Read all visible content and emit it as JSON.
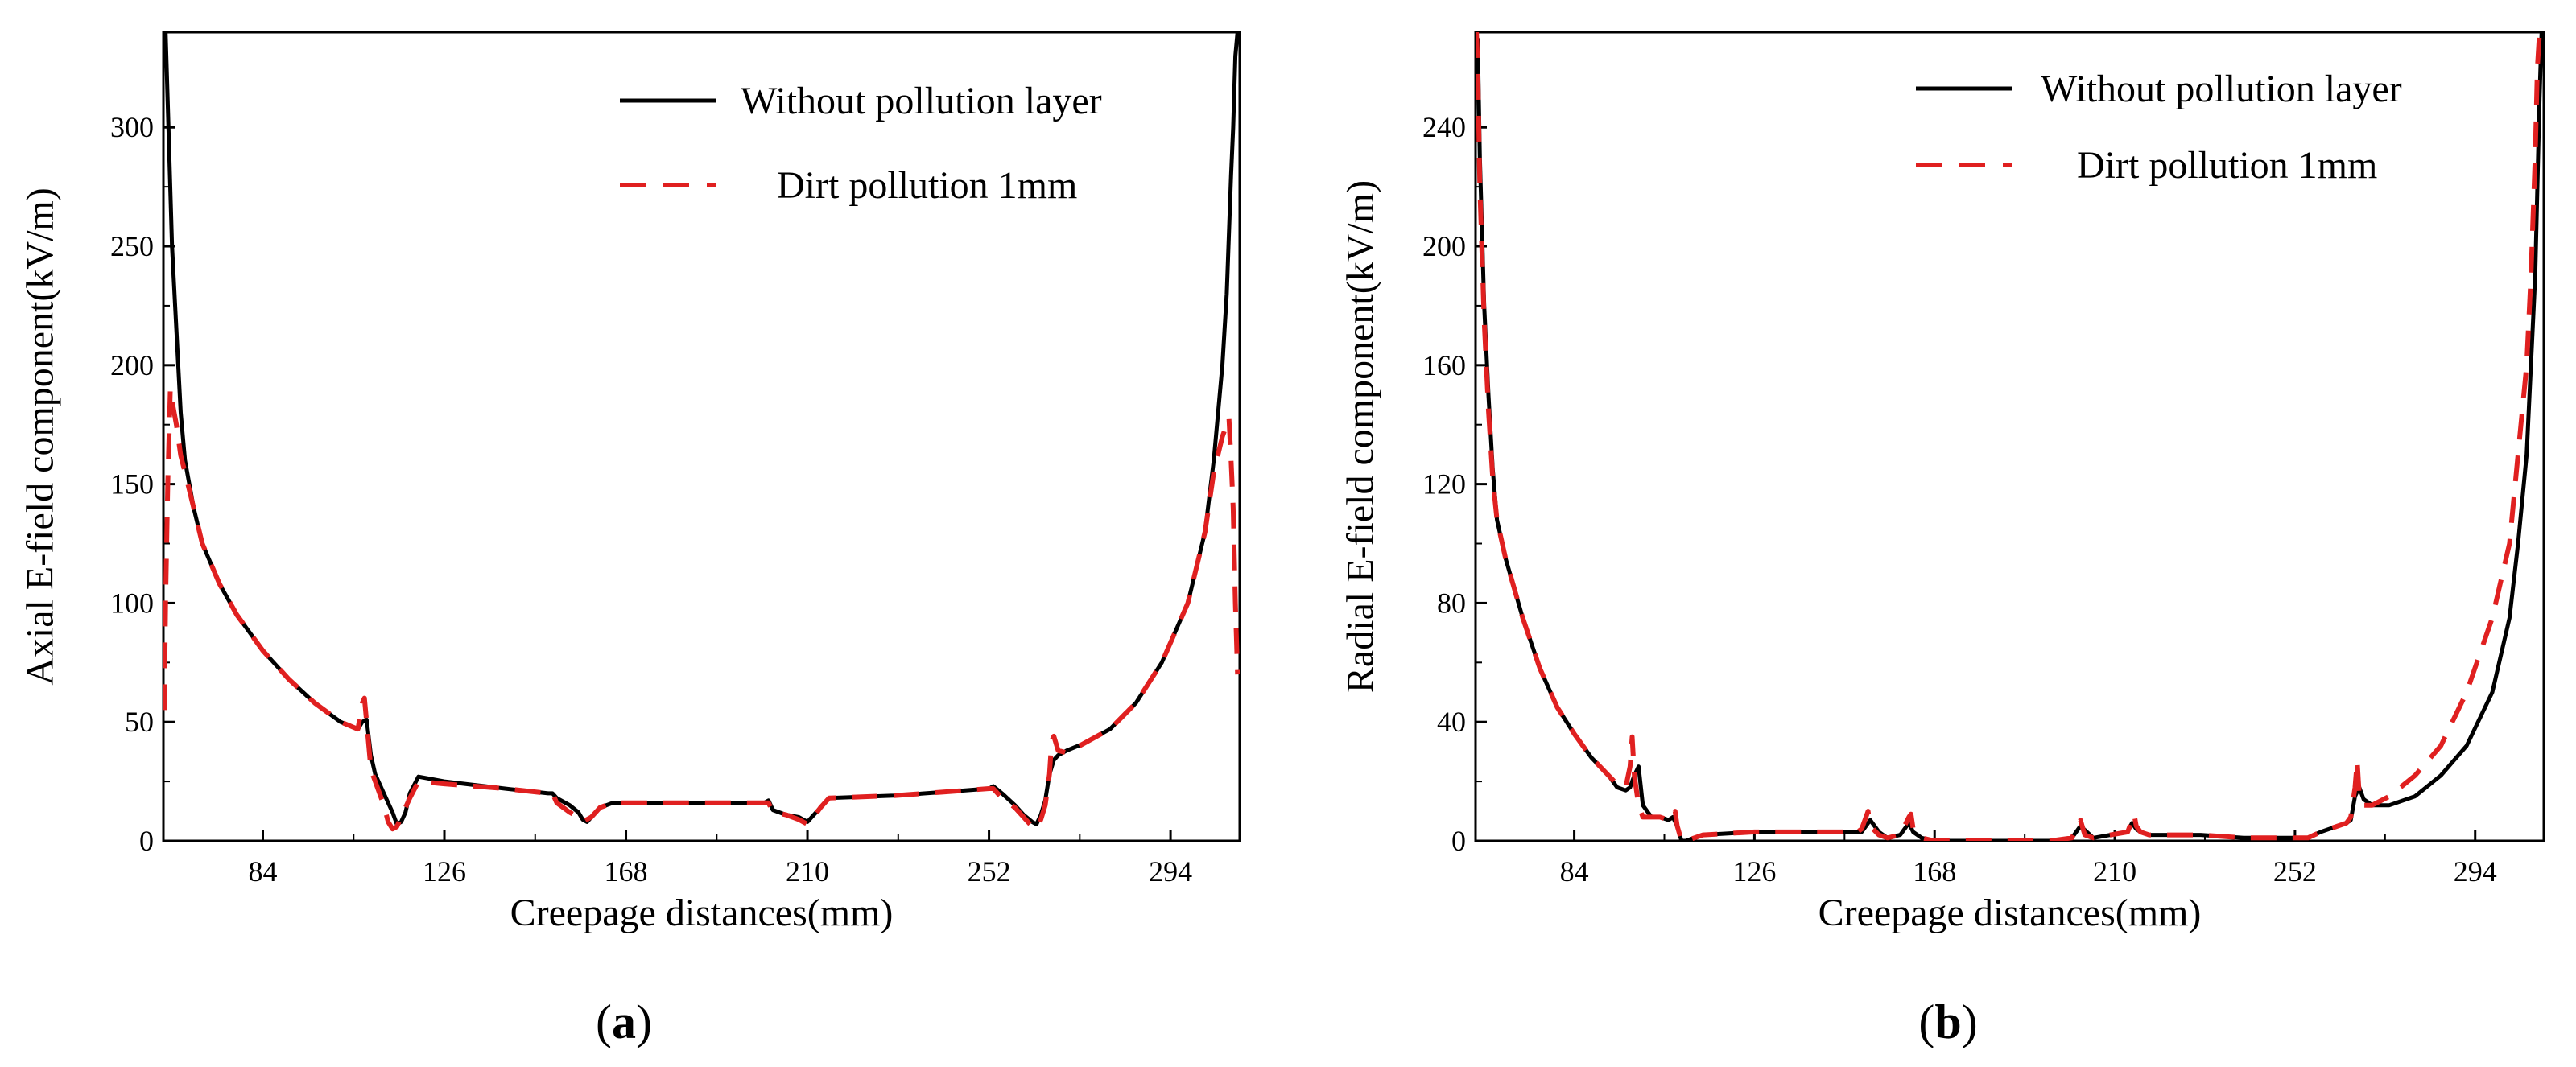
{
  "chart_data": [
    {
      "type": "line",
      "panel_label": {
        "open": "(",
        "letter": "a",
        "close": ")"
      },
      "xlabel": "Creepage distances(mm)",
      "ylabel": "Axial E-field component(kV/m)",
      "xlim": [
        61,
        310
      ],
      "ylim": [
        0,
        340
      ],
      "xticks": [
        84,
        126,
        168,
        210,
        252,
        294
      ],
      "yticks": [
        0,
        50,
        100,
        150,
        200,
        250,
        300
      ],
      "legend_position": "top-right",
      "series": [
        {
          "name": "Without pollution layer",
          "color": "#000000",
          "dash": "solid",
          "x": [
            61.5,
            62,
            63,
            64,
            65,
            66,
            68,
            70,
            74,
            78,
            84,
            90,
            96,
            102,
            106,
            107,
            108,
            109,
            110,
            112,
            114,
            115,
            116,
            117,
            118,
            120,
            126,
            140,
            150,
            151,
            152,
            155,
            157,
            158,
            159,
            160,
            162,
            165,
            168,
            190,
            200,
            201,
            202,
            205,
            208,
            209,
            210,
            211,
            213,
            215,
            230,
            245,
            252,
            253,
            255,
            258,
            260,
            262,
            263,
            264,
            265,
            266,
            267,
            268,
            269,
            270,
            274,
            280,
            286,
            292,
            298,
            302,
            304,
            306,
            307,
            308,
            308.5,
            309,
            309.5
          ],
          "y": [
            340,
            310,
            250,
            215,
            180,
            160,
            140,
            125,
            108,
            95,
            80,
            68,
            58,
            50,
            47,
            50,
            51,
            36,
            28,
            20,
            12,
            7,
            8,
            12,
            20,
            27,
            25,
            22,
            20,
            20,
            18,
            15,
            12,
            9,
            8,
            10,
            14,
            16,
            16,
            16,
            16,
            17,
            13,
            11,
            10,
            9,
            8,
            10,
            14,
            18,
            19,
            21,
            22,
            23,
            20,
            15,
            11,
            8,
            7,
            11,
            17,
            28,
            34,
            36,
            37,
            38,
            41,
            47,
            58,
            75,
            100,
            130,
            160,
            200,
            230,
            280,
            300,
            330,
            340
          ]
        },
        {
          "name": "Dirt pollution 1mm",
          "color": "#e02020",
          "dash": "dashed",
          "x": [
            61.2,
            61.5,
            62,
            62.6,
            63,
            64,
            65,
            66,
            68,
            70,
            74,
            78,
            84,
            90,
            96,
            102,
            106,
            107,
            107.5,
            108,
            108.5,
            109,
            110,
            112,
            113,
            114,
            115,
            116,
            118,
            120,
            126,
            140,
            150,
            151,
            152,
            155,
            157,
            158,
            160,
            162,
            165,
            168,
            190,
            200,
            201,
            202,
            205,
            208,
            209,
            210,
            211,
            213,
            215,
            230,
            245,
            252,
            253,
            255,
            258,
            260,
            262,
            263,
            264,
            265,
            266,
            266.5,
            267,
            268,
            270,
            274,
            280,
            286,
            292,
            298,
            302,
            304,
            306,
            307,
            307.5,
            308,
            308.5,
            309,
            309.5
          ],
          "y": [
            55,
            100,
            150,
            190,
            185,
            175,
            162,
            155,
            140,
            125,
            108,
            95,
            80,
            68,
            58,
            50,
            47,
            58,
            60,
            50,
            40,
            30,
            25,
            15,
            8,
            5,
            6,
            10,
            18,
            25,
            24,
            22,
            20,
            20,
            16,
            12,
            10,
            8,
            10,
            14,
            16,
            16,
            16,
            16,
            16,
            12,
            11,
            9,
            8,
            7,
            9,
            14,
            18,
            19,
            21,
            22,
            22,
            18,
            14,
            10,
            6,
            5,
            9,
            15,
            28,
            42,
            44,
            38,
            37,
            41,
            47,
            58,
            75,
            100,
            130,
            155,
            170,
            175,
            178,
            160,
            140,
            100,
            70
          ]
        }
      ]
    },
    {
      "type": "line",
      "panel_label": {
        "open": "(",
        "letter": "b",
        "close": ")"
      },
      "xlabel": "Creepage distances(mm)",
      "ylabel": "Radial E-field component(kV/m)",
      "xlim": [
        61,
        310
      ],
      "ylim": [
        0,
        272
      ],
      "xticks": [
        84,
        126,
        168,
        210,
        252,
        294
      ],
      "yticks": [
        0,
        40,
        80,
        120,
        160,
        200,
        240
      ],
      "legend_position": "top-right",
      "series": [
        {
          "name": "Without pollution layer",
          "color": "#000000",
          "dash": "solid",
          "x": [
            61.5,
            62,
            63,
            64,
            65,
            66,
            68,
            72,
            76,
            80,
            84,
            88,
            92,
            94,
            96,
            97,
            98,
            99,
            100,
            102,
            104,
            106,
            107,
            108,
            109,
            110,
            112,
            114,
            126,
            140,
            150,
            151,
            152,
            153,
            155,
            157,
            160,
            161,
            162,
            163,
            165,
            168,
            180,
            195,
            200,
            201,
            202,
            205,
            213,
            214,
            215,
            216,
            218,
            230,
            240,
            250,
            255,
            258,
            262,
            264,
            265,
            266,
            267,
            268,
            270,
            274,
            280,
            286,
            292,
            298,
            302,
            304,
            306,
            307,
            308,
            308.5,
            309,
            309.5
          ],
          "y": [
            270,
            230,
            180,
            150,
            125,
            108,
            95,
            75,
            58,
            45,
            36,
            28,
            22,
            18,
            17,
            18,
            22,
            25,
            12,
            8,
            8,
            7,
            8,
            5,
            0,
            0,
            1,
            2,
            3,
            3,
            3,
            3,
            5,
            7,
            3,
            1,
            2,
            4,
            6,
            3,
            1,
            0,
            0,
            0,
            1,
            3,
            5,
            1,
            3,
            6,
            4,
            3,
            2,
            2,
            1,
            1,
            1,
            3,
            5,
            6,
            7,
            15,
            18,
            14,
            12,
            12,
            15,
            22,
            32,
            50,
            75,
            100,
            130,
            160,
            190,
            220,
            250,
            272
          ]
        },
        {
          "name": "Dirt pollution 1mm",
          "color": "#e02020",
          "dash": "dashed",
          "x": [
            61.2,
            61.5,
            62,
            63,
            64,
            65,
            66,
            68,
            72,
            76,
            80,
            84,
            88,
            92,
            94,
            96,
            97,
            97.5,
            98,
            99,
            100,
            102,
            104,
            106,
            107,
            107.5,
            108,
            109,
            110,
            112,
            114,
            126,
            140,
            150,
            151,
            152,
            152.5,
            153,
            155,
            157,
            160,
            161,
            162,
            162.5,
            163,
            165,
            168,
            180,
            195,
            200,
            201,
            202,
            203,
            205,
            213,
            214,
            214.5,
            215,
            216,
            218,
            230,
            240,
            250,
            255,
            258,
            262,
            264,
            265,
            266,
            266.5,
            267,
            268,
            270,
            274,
            280,
            286,
            292,
            298,
            302,
            304,
            306,
            307,
            308,
            308.5,
            309,
            309.5
          ],
          "y": [
            272,
            260,
            220,
            175,
            145,
            122,
            108,
            95,
            75,
            58,
            45,
            36,
            28,
            22,
            19,
            18,
            25,
            35,
            22,
            12,
            8,
            8,
            8,
            7,
            8,
            10,
            5,
            0,
            0,
            1,
            2,
            3,
            3,
            3,
            4,
            8,
            10,
            5,
            2,
            1,
            2,
            5,
            8,
            9,
            4,
            1,
            0,
            0,
            0,
            1,
            4,
            7,
            2,
            1,
            3,
            7,
            9,
            5,
            3,
            2,
            2,
            1,
            1,
            1,
            3,
            5,
            6,
            8,
            18,
            27,
            15,
            12,
            12,
            15,
            22,
            32,
            50,
            75,
            100,
            130,
            160,
            190,
            230,
            260,
            272,
            272
          ]
        }
      ]
    }
  ]
}
